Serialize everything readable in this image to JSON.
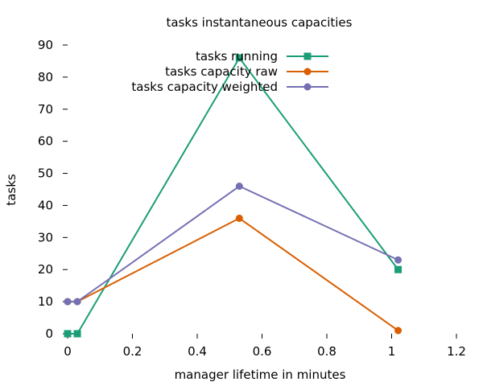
{
  "chart_data": {
    "type": "line",
    "title": "tasks instantaneous capacities",
    "xlabel": "manager lifetime in minutes",
    "ylabel": "tasks",
    "xlim": [
      0,
      1.2
    ],
    "ylim": [
      0,
      90
    ],
    "xticks": [
      "0",
      "0.2",
      "0.4",
      "0.6",
      "0.8",
      "1",
      "1.2"
    ],
    "yticks": [
      "0",
      "10",
      "20",
      "30",
      "40",
      "50",
      "60",
      "70",
      "80",
      "90"
    ],
    "grid": false,
    "legend_position": "top-right",
    "series": [
      {
        "name": "tasks running",
        "color": "#1b9e77",
        "marker": "square",
        "x": [
          0.0,
          0.03,
          0.53,
          1.02
        ],
        "y": [
          0,
          0,
          86,
          20
        ]
      },
      {
        "name": "tasks capacity raw",
        "color": "#d95f02",
        "marker": "circle",
        "x": [
          0.0,
          0.03,
          0.53,
          1.02
        ],
        "y": [
          10,
          10,
          36,
          1
        ]
      },
      {
        "name": "tasks capacity weighted",
        "color": "#7570b3",
        "marker": "circle",
        "x": [
          0.0,
          0.03,
          0.53,
          1.02
        ],
        "y": [
          10,
          10,
          46,
          23
        ]
      }
    ]
  }
}
